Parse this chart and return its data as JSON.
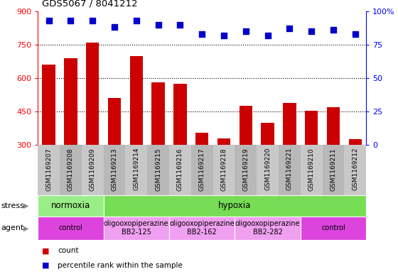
{
  "title": "GDS5067 / 8041212",
  "samples": [
    "GSM1169207",
    "GSM1169208",
    "GSM1169209",
    "GSM1169213",
    "GSM1169214",
    "GSM1169215",
    "GSM1169216",
    "GSM1169217",
    "GSM1169218",
    "GSM1169219",
    "GSM1169220",
    "GSM1169221",
    "GSM1169210",
    "GSM1169211",
    "GSM1169212"
  ],
  "counts": [
    660,
    690,
    760,
    510,
    700,
    580,
    575,
    355,
    330,
    475,
    400,
    490,
    455,
    470,
    325
  ],
  "percentiles": [
    93,
    93,
    93,
    88,
    93,
    90,
    90,
    83,
    82,
    85,
    82,
    87,
    85,
    86,
    83
  ],
  "ylim": [
    300,
    900
  ],
  "yticks": [
    300,
    450,
    600,
    750,
    900
  ],
  "y2lim": [
    0,
    100
  ],
  "y2ticks": [
    0,
    25,
    50,
    75,
    100
  ],
  "bar_color": "#cc0000",
  "dot_color": "#0000cc",
  "bar_width": 0.6,
  "stress_row": [
    {
      "label": "normoxia",
      "start": 0,
      "end": 3,
      "color": "#99ee88"
    },
    {
      "label": "hypoxia",
      "start": 3,
      "end": 15,
      "color": "#77dd55"
    }
  ],
  "agent_row": [
    {
      "label": "control",
      "start": 0,
      "end": 3,
      "color": "#dd44dd"
    },
    {
      "label": "oligooxopiperazine\nBB2-125",
      "start": 3,
      "end": 6,
      "color": "#f0a0f0"
    },
    {
      "label": "oligooxopiperazine\nBB2-162",
      "start": 6,
      "end": 9,
      "color": "#f0a0f0"
    },
    {
      "label": "oligooxopiperazine\nBB2-282",
      "start": 9,
      "end": 12,
      "color": "#f0a0f0"
    },
    {
      "label": "control",
      "start": 12,
      "end": 15,
      "color": "#dd44dd"
    }
  ],
  "legend_count_label": "count",
  "legend_pct_label": "percentile rank within the sample"
}
